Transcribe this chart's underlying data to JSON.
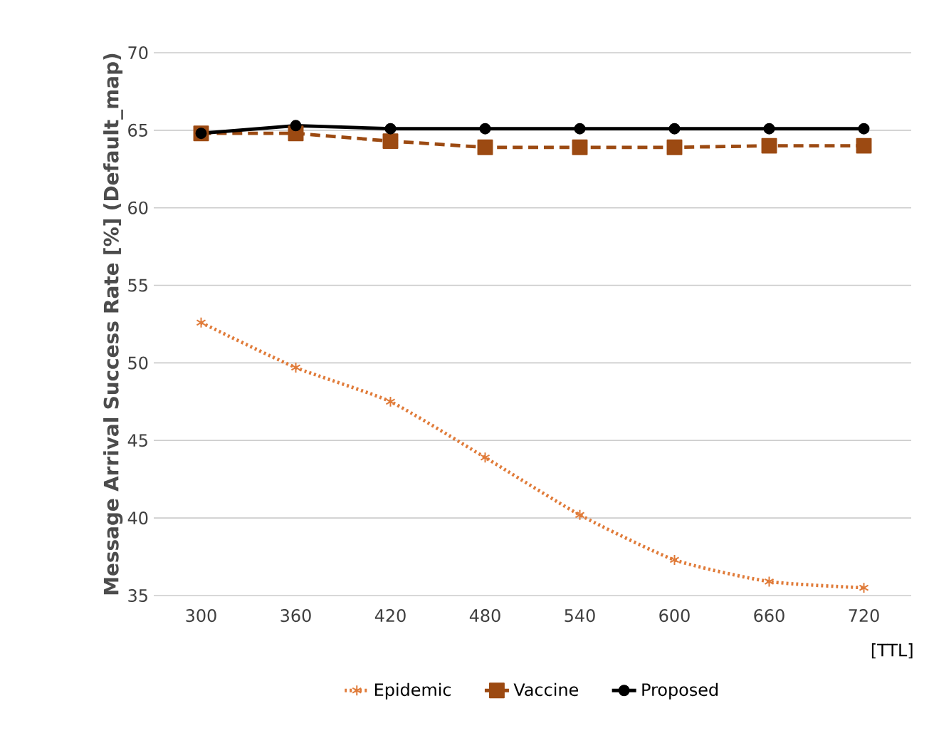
{
  "chart_data": {
    "type": "line",
    "xlabel": "[TTL]",
    "ylabel": "Message Arrival Success Rate [%] (Default_map)",
    "categories": [
      "300",
      "360",
      "420",
      "480",
      "540",
      "600",
      "660",
      "720"
    ],
    "series": [
      {
        "name": "Epidemic",
        "color": "#e07b39",
        "marker": "cross",
        "line_style": "dotted",
        "values": [
          52.6,
          49.7,
          47.5,
          43.9,
          40.2,
          37.3,
          35.9,
          35.5
        ]
      },
      {
        "name": "Vaccine",
        "color": "#9c4a12",
        "marker": "square",
        "line_style": "dashed",
        "values": [
          64.8,
          64.8,
          64.3,
          63.9,
          63.9,
          63.9,
          64.0,
          64.0
        ]
      },
      {
        "name": "Proposed",
        "color": "#000000",
        "marker": "circle",
        "line_style": "solid",
        "values": [
          64.8,
          65.3,
          65.1,
          65.1,
          65.1,
          65.1,
          65.1,
          65.1
        ]
      }
    ],
    "ylim": [
      35,
      70
    ],
    "yticks": [
      35,
      40,
      45,
      50,
      55,
      60,
      65,
      70
    ],
    "grid": "y",
    "legend": "bottom"
  }
}
